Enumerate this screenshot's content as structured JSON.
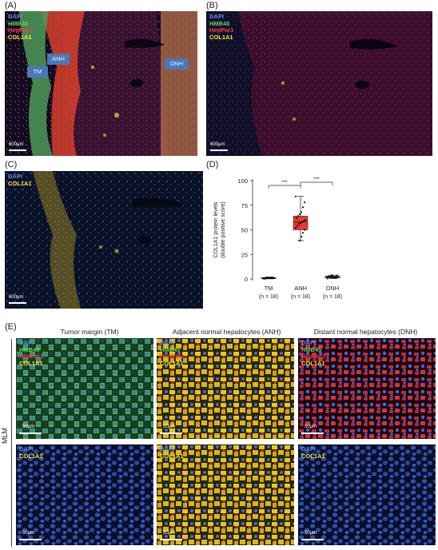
{
  "panels": {
    "A": {
      "label": "(A)",
      "legend": [
        "DAPI",
        "HMB45",
        "HepPar1",
        "COL1A1"
      ],
      "scale": "600μm",
      "regions": [
        "TM",
        "ANH",
        "DNH"
      ]
    },
    "B": {
      "label": "(B)",
      "legend": [
        "DAPI",
        "HMB45",
        "HepPar1",
        "COL1A1"
      ],
      "scale": "600μm"
    },
    "C": {
      "label": "(C)",
      "legend": [
        "DAPI",
        "COL1A1"
      ],
      "scale": "600μm"
    },
    "D": {
      "label": "(D)"
    },
    "E": {
      "label": "(E)",
      "row_label": "MLM",
      "columns": [
        "Tumor margin (TM)",
        "Adjacent normal hepatocytes (ANH)",
        "Distant normal hepatocytes (DNH)"
      ],
      "legend_full": [
        "DAPI",
        "HMB45",
        "HepPar1",
        "COL1A1"
      ],
      "legend_short": [
        "DAPI",
        "COL1A1"
      ],
      "scale": "50μm"
    }
  },
  "legend_colors": {
    "DAPI": "#5b8de8",
    "HMB45": "#5fd35f",
    "HepPar1": "#ff3b3b",
    "COL1A1": "#ffe333"
  },
  "chart_data": {
    "type": "box",
    "ylabel": "COL1A1 protein levels\n(double positive score)",
    "yticks": [
      0,
      25,
      50,
      75,
      100
    ],
    "ylim": [
      0,
      100
    ],
    "categories": [
      "TM",
      "ANH",
      "DNH"
    ],
    "category_n": [
      "(n = 18)",
      "(n = 18)",
      "(n = 18)"
    ],
    "boxes": [
      {
        "category": "TM",
        "min": 0.2,
        "q1": 0.5,
        "median": 1.0,
        "q3": 1.5,
        "max": 2.0,
        "color": "#555555",
        "points": [
          0.3,
          0.6,
          0.8,
          1.0,
          1.2,
          0.5,
          0.9,
          1.1,
          1.4,
          0.7,
          1.0,
          1.3,
          0.4,
          0.8,
          1.6,
          1.1,
          0.9,
          1.2
        ]
      },
      {
        "category": "ANH",
        "min": 39,
        "q1": 50,
        "median": 58,
        "q3": 64,
        "max": 84,
        "color": "#e8382f",
        "points": [
          84,
          78,
          73,
          68,
          66,
          64,
          62,
          60,
          59,
          58,
          57,
          56,
          54,
          52,
          50,
          47,
          43,
          39
        ]
      },
      {
        "category": "DNH",
        "min": 0.5,
        "q1": 1.0,
        "median": 2.0,
        "q3": 3.0,
        "max": 4.0,
        "color": "#666666",
        "points": [
          0.6,
          1.0,
          1.4,
          1.8,
          2.2,
          2.6,
          3.0,
          3.6,
          1.2,
          2.0,
          2.8,
          1.6,
          2.4,
          0.9,
          3.2,
          1.1,
          2.1,
          3.9
        ]
      }
    ],
    "significance": [
      {
        "from": "TM",
        "to": "ANH",
        "label": "***"
      },
      {
        "from": "ANH",
        "to": "DNH",
        "label": "***"
      }
    ]
  }
}
